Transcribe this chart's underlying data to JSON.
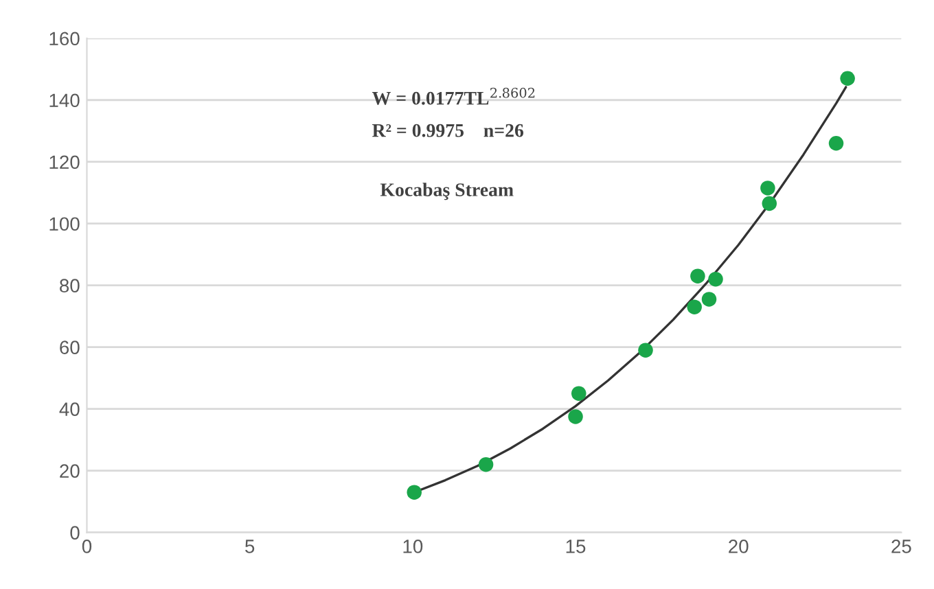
{
  "chart_data": {
    "type": "scatter",
    "xlim": [
      0,
      25
    ],
    "ylim": [
      0,
      160
    ],
    "xticks": [
      0,
      5,
      10,
      15,
      20,
      25
    ],
    "yticks": [
      0,
      20,
      40,
      60,
      80,
      100,
      120,
      140,
      160
    ],
    "grid": "y",
    "annotations": [
      "W = 0.0177TL$^{2.8602}$",
      "R² = 0.9975    n=26",
      "Kocabaş Stream"
    ],
    "series": [
      {
        "marker": "circle",
        "color": "#1aa64a",
        "x": [
          10.05,
          12.25,
          15.0,
          15.1,
          17.15,
          18.65,
          18.75,
          19.1,
          19.3,
          20.9,
          20.95,
          23.0,
          23.35
        ],
        "values": [
          13,
          22,
          37.5,
          45,
          59,
          73,
          83,
          75.5,
          82,
          111.5,
          106.5,
          126,
          147
        ]
      },
      {
        "type": "line",
        "color": "#333333",
        "line_style": "solid",
        "x": [
          10,
          11,
          12,
          13,
          14,
          15,
          16,
          17,
          18,
          19,
          20,
          21,
          22,
          23,
          23.3
        ],
        "values": [
          12.8,
          16.9,
          21.6,
          27.2,
          33.6,
          40.9,
          49.2,
          58.5,
          68.9,
          80.5,
          93.1,
          107.1,
          122.4,
          138.9,
          144.2
        ]
      }
    ]
  }
}
